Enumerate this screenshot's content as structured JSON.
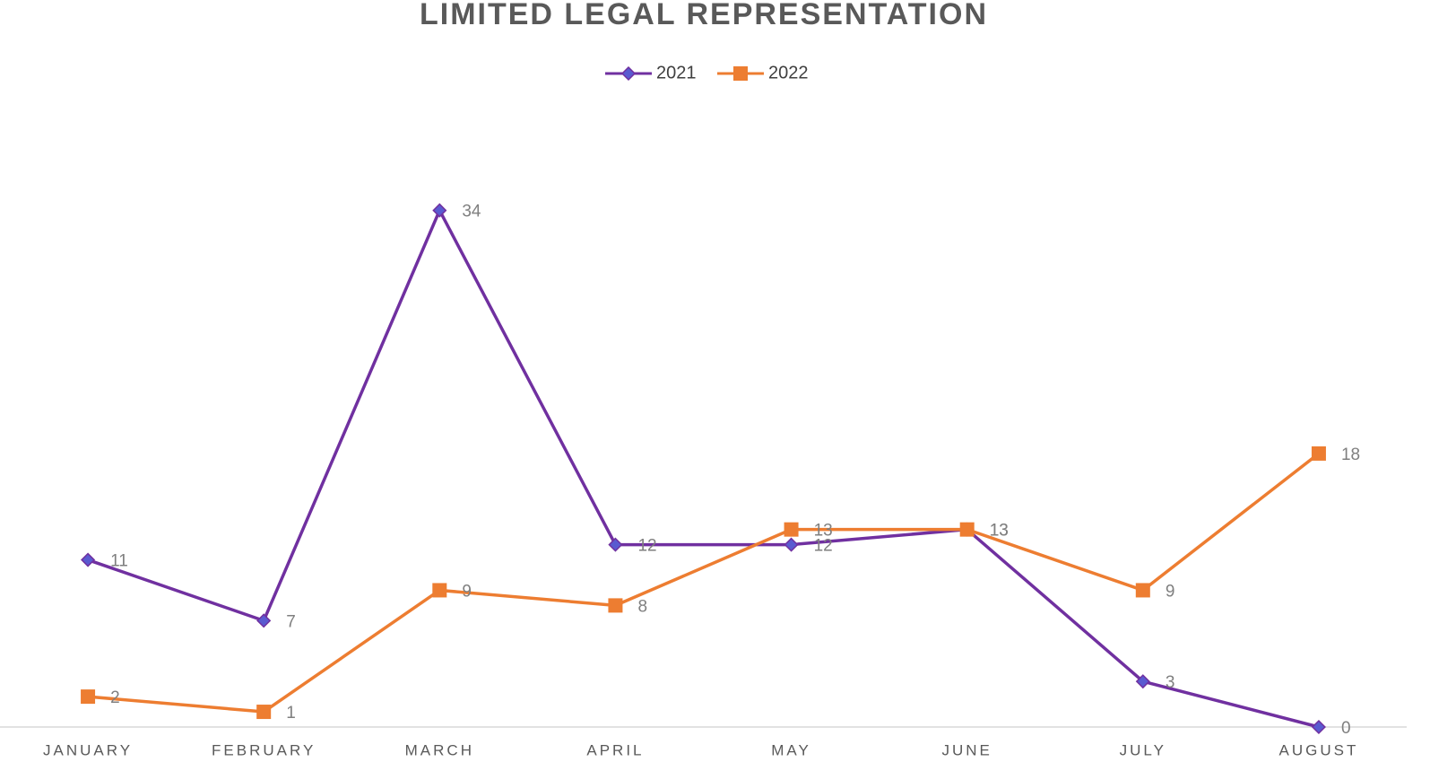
{
  "chart_data": {
    "type": "line",
    "title": "LIMITED LEGAL REPRESENTATION",
    "categories": [
      "JANUARY",
      "FEBRUARY",
      "MARCH",
      "APRIL",
      "MAY",
      "JUNE",
      "JULY",
      "AUGUST"
    ],
    "series": [
      {
        "name": "2021",
        "color": "#7030a0",
        "marker": "diamond",
        "marker_color": "#5a5ad0",
        "values": [
          11,
          7,
          34,
          12,
          12,
          13,
          3,
          0
        ]
      },
      {
        "name": "2022",
        "color": "#ed7d31",
        "marker": "square",
        "marker_color": "#ed7d31",
        "values": [
          2,
          1,
          9,
          8,
          13,
          13,
          9,
          18
        ]
      }
    ],
    "ylim": [
      0,
      40
    ],
    "legend": "top"
  }
}
